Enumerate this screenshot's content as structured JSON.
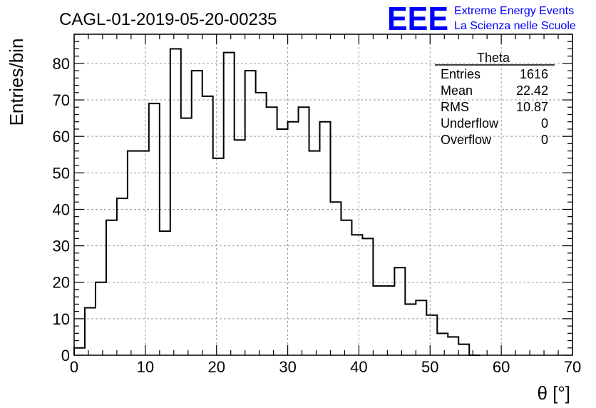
{
  "chart_data": {
    "type": "bar",
    "style": "step-histogram",
    "title": "CAGL-01-2019-05-20-00235",
    "xlabel": "θ [°]",
    "ylabel": "Entries/bin",
    "xlim": [
      0,
      70
    ],
    "ylim": [
      0,
      88
    ],
    "grid": true,
    "bin_width": 1.5,
    "bin_start": 0,
    "x_ticks": [
      "0",
      "10",
      "20",
      "30",
      "40",
      "50",
      "60",
      "70"
    ],
    "y_ticks": [
      "0",
      "10",
      "20",
      "30",
      "40",
      "50",
      "60",
      "70",
      "80"
    ],
    "values": [
      2,
      13,
      20,
      37,
      43,
      56,
      56,
      69,
      34,
      84,
      65,
      78,
      71,
      54,
      83,
      59,
      78,
      72,
      68,
      62,
      64,
      68,
      56,
      64,
      42,
      37,
      33,
      32,
      19,
      19,
      24,
      14,
      15,
      11,
      6,
      5,
      3,
      0
    ],
    "line_color": "#000000",
    "stats": {
      "name": "Theta",
      "rows": [
        {
          "label": "Entries",
          "value": "1616"
        },
        {
          "label": "Mean",
          "value": "22.42"
        },
        {
          "label": "RMS",
          "value": "10.87"
        },
        {
          "label": "Underflow",
          "value": "0"
        },
        {
          "label": "Overflow",
          "value": "0"
        }
      ],
      "placement": "top-right"
    }
  },
  "logo": {
    "mark": "EEE",
    "line1": "Extreme Energy Events",
    "line2": "La Scienza nelle Scuole",
    "color": "#0000ff"
  }
}
